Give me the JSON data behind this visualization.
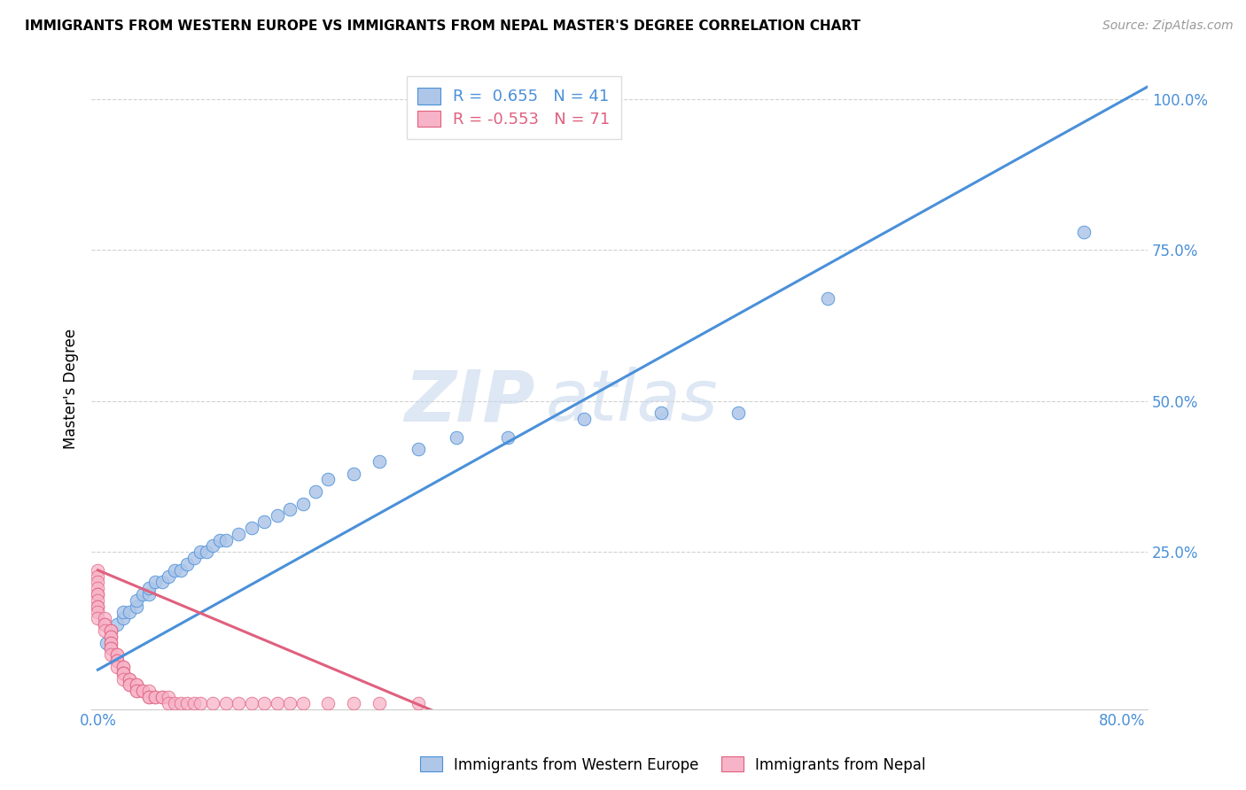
{
  "title": "IMMIGRANTS FROM WESTERN EUROPE VS IMMIGRANTS FROM NEPAL MASTER'S DEGREE CORRELATION CHART",
  "source": "Source: ZipAtlas.com",
  "xlabel_ticks": [
    "0.0%",
    "",
    "",
    "",
    "80.0%"
  ],
  "xlabel_tick_vals": [
    0.0,
    0.2,
    0.4,
    0.6,
    0.8
  ],
  "ylabel": "Master's Degree",
  "ylabel_ticks": [
    "100.0%",
    "75.0%",
    "50.0%",
    "25.0%",
    ""
  ],
  "ylabel_tick_vals": [
    1.0,
    0.75,
    0.5,
    0.25,
    0.0
  ],
  "xlim": [
    -0.005,
    0.82
  ],
  "ylim": [
    -0.01,
    1.05
  ],
  "blue_R": 0.655,
  "blue_N": 41,
  "pink_R": -0.553,
  "pink_N": 71,
  "blue_color": "#aec6e8",
  "pink_color": "#f7b3c8",
  "blue_line_color": "#4a90d9",
  "pink_line_color": "#e0607e",
  "watermark_zip": "ZIP",
  "watermark_atlas": "atlas",
  "blue_scatter_x": [
    0.007,
    0.01,
    0.015,
    0.02,
    0.02,
    0.025,
    0.03,
    0.03,
    0.035,
    0.04,
    0.04,
    0.045,
    0.05,
    0.055,
    0.06,
    0.065,
    0.07,
    0.075,
    0.08,
    0.085,
    0.09,
    0.095,
    0.1,
    0.11,
    0.12,
    0.13,
    0.14,
    0.15,
    0.16,
    0.17,
    0.18,
    0.2,
    0.22,
    0.25,
    0.28,
    0.32,
    0.38,
    0.44,
    0.5,
    0.57,
    0.77
  ],
  "blue_scatter_y": [
    0.1,
    0.12,
    0.13,
    0.14,
    0.15,
    0.15,
    0.16,
    0.17,
    0.18,
    0.18,
    0.19,
    0.2,
    0.2,
    0.21,
    0.22,
    0.22,
    0.23,
    0.24,
    0.25,
    0.25,
    0.26,
    0.27,
    0.27,
    0.28,
    0.29,
    0.3,
    0.31,
    0.32,
    0.33,
    0.35,
    0.37,
    0.38,
    0.4,
    0.42,
    0.44,
    0.44,
    0.47,
    0.48,
    0.48,
    0.67,
    0.78
  ],
  "pink_scatter_x": [
    0.0,
    0.0,
    0.0,
    0.0,
    0.0,
    0.0,
    0.0,
    0.0,
    0.0,
    0.0,
    0.0,
    0.005,
    0.005,
    0.005,
    0.005,
    0.01,
    0.01,
    0.01,
    0.01,
    0.01,
    0.01,
    0.01,
    0.01,
    0.01,
    0.015,
    0.015,
    0.015,
    0.015,
    0.015,
    0.02,
    0.02,
    0.02,
    0.02,
    0.02,
    0.02,
    0.025,
    0.025,
    0.025,
    0.025,
    0.03,
    0.03,
    0.03,
    0.03,
    0.035,
    0.035,
    0.04,
    0.04,
    0.04,
    0.045,
    0.045,
    0.05,
    0.05,
    0.055,
    0.055,
    0.06,
    0.065,
    0.07,
    0.075,
    0.08,
    0.09,
    0.1,
    0.11,
    0.12,
    0.13,
    0.14,
    0.15,
    0.16,
    0.18,
    0.2,
    0.22,
    0.25
  ],
  "pink_scatter_y": [
    0.22,
    0.21,
    0.2,
    0.19,
    0.18,
    0.18,
    0.17,
    0.16,
    0.16,
    0.15,
    0.14,
    0.14,
    0.13,
    0.13,
    0.12,
    0.12,
    0.12,
    0.11,
    0.11,
    0.1,
    0.1,
    0.09,
    0.09,
    0.08,
    0.08,
    0.08,
    0.07,
    0.07,
    0.06,
    0.06,
    0.06,
    0.05,
    0.05,
    0.05,
    0.04,
    0.04,
    0.04,
    0.03,
    0.03,
    0.03,
    0.03,
    0.02,
    0.02,
    0.02,
    0.02,
    0.02,
    0.01,
    0.01,
    0.01,
    0.01,
    0.01,
    0.01,
    0.01,
    0.0,
    0.0,
    0.0,
    0.0,
    0.0,
    0.0,
    0.0,
    0.0,
    0.0,
    0.0,
    0.0,
    0.0,
    0.0,
    0.0,
    0.0,
    0.0,
    0.0,
    0.0
  ],
  "blue_line_x": [
    0.0,
    0.82
  ],
  "blue_line_y": [
    0.055,
    1.02
  ],
  "pink_line_x": [
    0.0,
    0.27
  ],
  "pink_line_y": [
    0.22,
    -0.02
  ],
  "legend_label_blue": "Immigrants from Western Europe",
  "legend_label_pink": "Immigrants from Nepal"
}
